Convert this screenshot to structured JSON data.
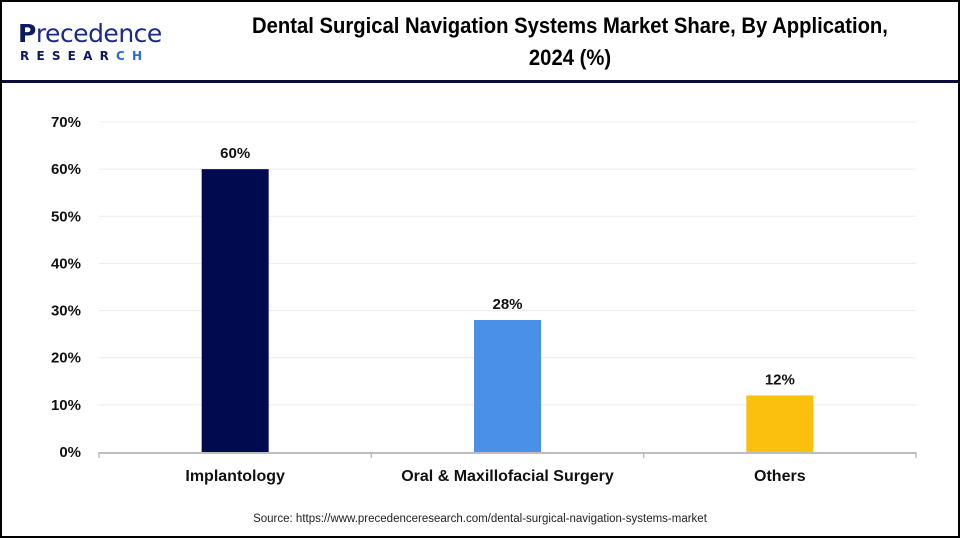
{
  "logo": {
    "main_initial": "P",
    "main_rest": "recedence",
    "sub_main": "RESEAR",
    "sub_accent": "CH"
  },
  "title_line1": "Dental Surgical Navigation Systems Market Share, By Application,",
  "title_line2": "2024 (%)",
  "source": "Source: https://www.precedenceresearch.com/dental-surgical-navigation-systems-market",
  "chart_data": {
    "type": "bar",
    "title": "Dental Surgical Navigation Systems Market Share, By Application, 2024 (%)",
    "xlabel": "",
    "ylabel": "",
    "categories": [
      "Implantology",
      "Oral & Maxillofacial Surgery",
      "Others"
    ],
    "values": [
      60,
      28,
      12
    ],
    "data_labels": [
      "60%",
      "28%",
      "12%"
    ],
    "colors": [
      "#020a4f",
      "#4a8fe8",
      "#fbbf0e"
    ],
    "ylim": [
      0,
      70
    ],
    "yticks": [
      0,
      10,
      20,
      30,
      40,
      50,
      60,
      70
    ],
    "ytick_labels": [
      "0%",
      "10%",
      "20%",
      "30%",
      "40%",
      "50%",
      "60%",
      "70%"
    ],
    "grid": true,
    "legend": "none"
  }
}
